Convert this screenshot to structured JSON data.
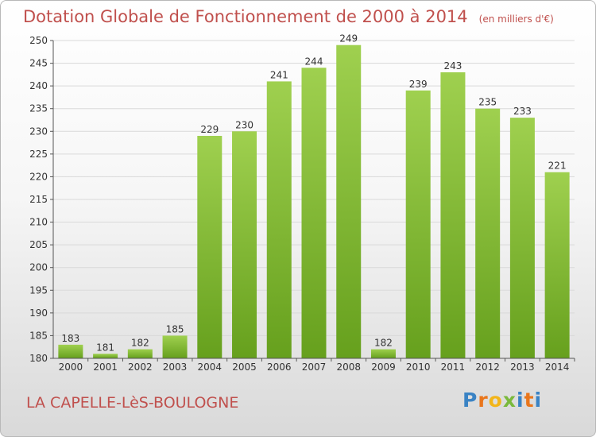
{
  "title": "Dotation Globale de Fonctionnement de 2000 à 2014",
  "unit": "(en milliers d'€)",
  "commune": "LA CAPELLE-LèS-BOULOGNE",
  "logo": {
    "p": "P",
    "r": "r",
    "o": "o",
    "x": "x",
    "i": "i",
    "t": "t",
    "i2": "i"
  },
  "colors": {
    "bar_light": "#9fd04f",
    "bar_dark": "#66a01d",
    "title": "#c0504d",
    "grid": "#d9d9d9"
  },
  "chart_data": {
    "type": "bar",
    "categories": [
      "2000",
      "2001",
      "2002",
      "2003",
      "2004",
      "2005",
      "2006",
      "2007",
      "2008",
      "2009",
      "2010",
      "2011",
      "2012",
      "2013",
      "2014"
    ],
    "values": [
      183,
      181,
      182,
      185,
      229,
      230,
      241,
      244,
      249,
      182,
      239,
      243,
      235,
      233,
      221
    ],
    "ylim": [
      180,
      250
    ],
    "yticks": [
      180,
      185,
      190,
      195,
      200,
      205,
      210,
      215,
      220,
      225,
      230,
      235,
      240,
      245,
      250
    ],
    "grid": true,
    "xlabel": "",
    "ylabel": ""
  }
}
